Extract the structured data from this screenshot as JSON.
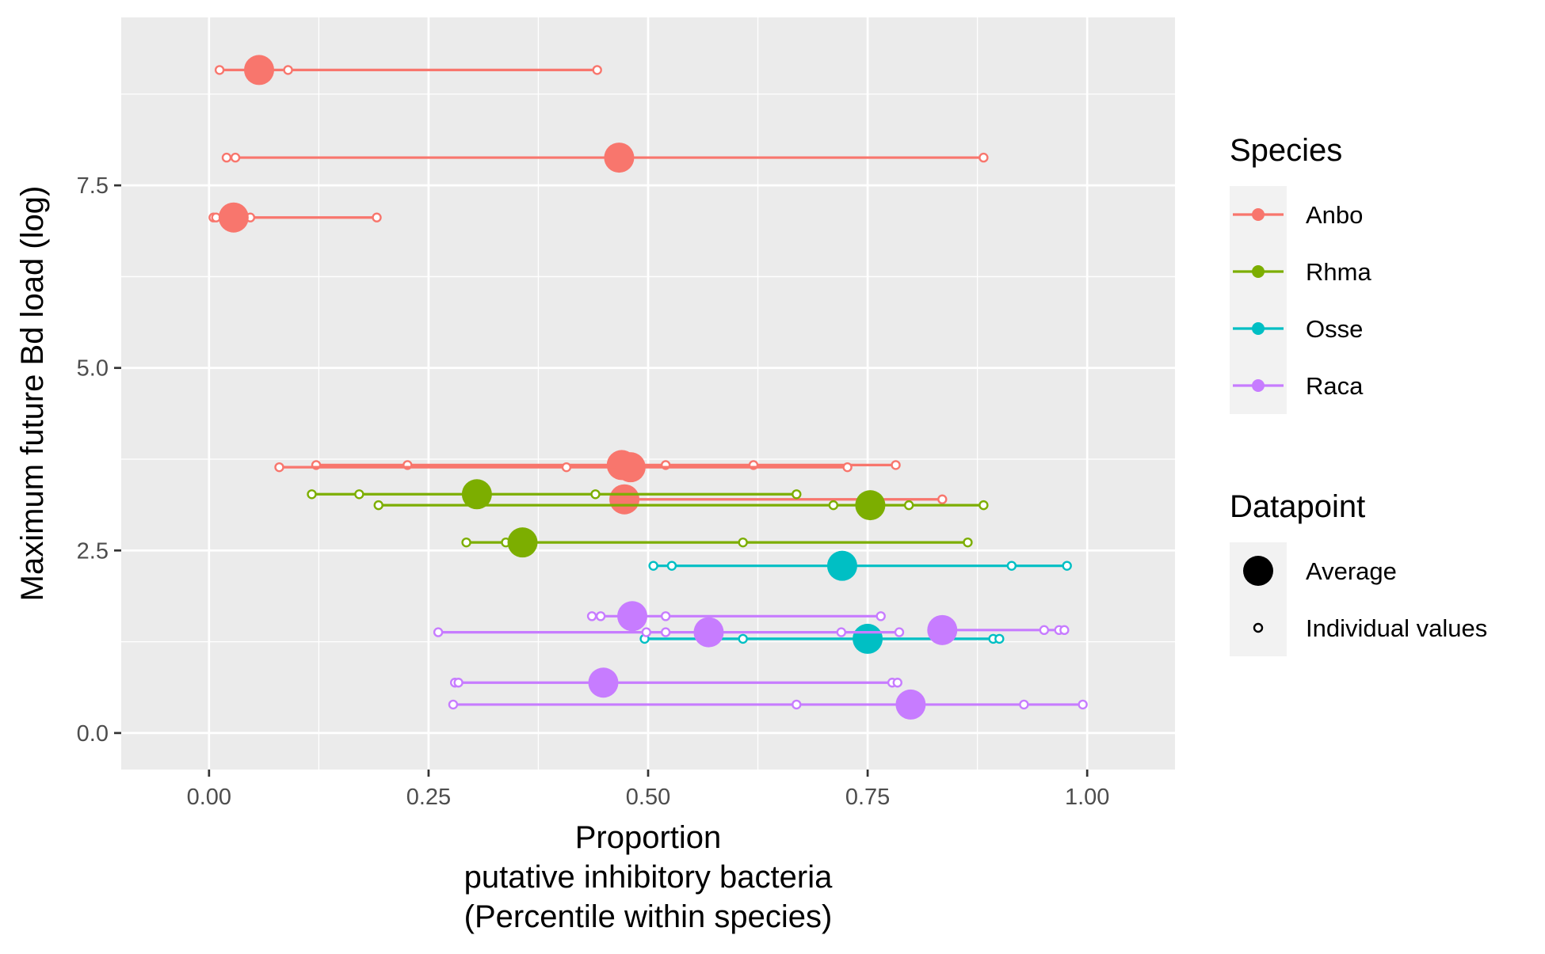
{
  "chart_data": {
    "type": "scatter",
    "xlabel_lines": [
      "Proportion",
      "putative inhibitory bacteria",
      "(Percentile within species)"
    ],
    "ylabel": "Maximum future Bd load (log)",
    "xlim": [
      -0.1,
      1.1
    ],
    "ylim": [
      -0.5,
      9.8
    ],
    "x_ticks": [
      0,
      0.25,
      0.5,
      0.75,
      1
    ],
    "x_tick_labels": [
      "0.00",
      "0.25",
      "0.50",
      "0.75",
      "1.00"
    ],
    "y_ticks": [
      0,
      2.5,
      5,
      7.5
    ],
    "y_tick_labels": [
      "0.0",
      "2.5",
      "5.0",
      "7.5"
    ],
    "grid": true,
    "legend_position": "right",
    "legend": {
      "species_title": "Species",
      "datapoint_title": "Datapoint",
      "datapoint_items": [
        {
          "key": "average",
          "label": "Average"
        },
        {
          "key": "individual",
          "label": "Individual values"
        }
      ]
    },
    "series": [
      {
        "name": "Anbo",
        "color": "#F8766D",
        "groups": [
          {
            "y": 9.08,
            "average": 0.057,
            "individual": [
              0.012,
              0.09,
              0.442
            ]
          },
          {
            "y": 7.88,
            "average": 0.467,
            "individual": [
              0.02,
              0.03,
              0.882
            ]
          },
          {
            "y": 7.06,
            "average": 0.028,
            "individual": [
              0.005,
              0.008,
              0.047,
              0.191
            ]
          },
          {
            "y": 3.67,
            "average": 0.47,
            "individual": [
              0.122,
              0.226,
              0.52,
              0.62,
              0.782
            ]
          },
          {
            "y": 3.64,
            "average": 0.48,
            "individual": [
              0.08,
              0.407,
              0.727
            ]
          },
          {
            "y": 3.2,
            "average": 0.473,
            "individual": [
              0.835
            ]
          }
        ]
      },
      {
        "name": "Rhma",
        "color": "#7CAE00",
        "groups": [
          {
            "y": 3.27,
            "average": 0.305,
            "individual": [
              0.117,
              0.171,
              0.44,
              0.669
            ]
          },
          {
            "y": 3.12,
            "average": 0.753,
            "individual": [
              0.193,
              0.711,
              0.797,
              0.882
            ]
          },
          {
            "y": 2.61,
            "average": 0.357,
            "individual": [
              0.293,
              0.338,
              0.608,
              0.864
            ]
          }
        ]
      },
      {
        "name": "Osse",
        "color": "#00BFC4",
        "groups": [
          {
            "y": 2.29,
            "average": 0.721,
            "individual": [
              0.506,
              0.527,
              0.914,
              0.977
            ]
          },
          {
            "y": 1.29,
            "average": 0.75,
            "individual": [
              0.496,
              0.608,
              0.893,
              0.9
            ]
          }
        ]
      },
      {
        "name": "Raca",
        "color": "#C77CFF",
        "groups": [
          {
            "y": 1.6,
            "average": 0.482,
            "individual": [
              0.436,
              0.446,
              0.52,
              0.765
            ]
          },
          {
            "y": 1.38,
            "average": 0.569,
            "individual": [
              0.261,
              0.498,
              0.52,
              0.72,
              0.786
            ]
          },
          {
            "y": 1.41,
            "average": 0.835,
            "individual": [
              0.951,
              0.968,
              0.974
            ]
          },
          {
            "y": 0.69,
            "average": 0.449,
            "individual": [
              0.28,
              0.284,
              0.778,
              0.784
            ]
          },
          {
            "y": 0.39,
            "average": 0.799,
            "individual": [
              0.278,
              0.669,
              0.928,
              0.995
            ]
          }
        ]
      }
    ]
  }
}
